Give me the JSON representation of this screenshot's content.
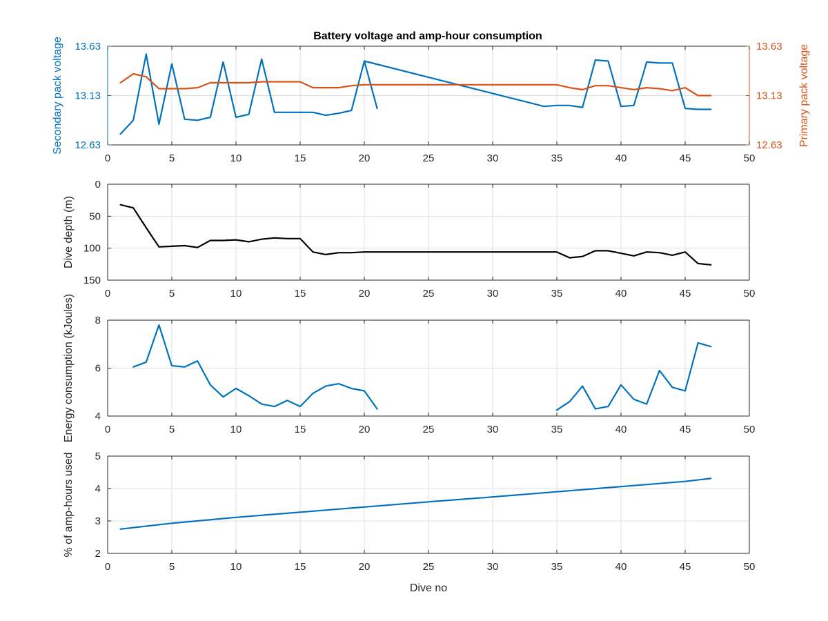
{
  "figure": {
    "title": "Battery voltage and amp-hour consumption"
  },
  "chart_data": [
    {
      "type": "line",
      "title": "Battery voltage and amp-hour consumption",
      "xlabel": "",
      "xlim": [
        0,
        50
      ],
      "xticks": [
        0,
        5,
        10,
        15,
        20,
        25,
        30,
        35,
        40,
        45,
        50
      ],
      "ylabel": "Secondary pack voltage",
      "ylim": [
        12.63,
        13.63
      ],
      "yticks": [
        12.63,
        13.13,
        13.63
      ],
      "ylabel_right": "Primary pack voltage",
      "ylim_right": [
        12.63,
        13.63
      ],
      "yticks_right": [
        12.63,
        13.13,
        13.63
      ],
      "grid": true,
      "colors": {
        "left_axis": "#0072BD",
        "right_axis": "#D95319"
      },
      "series": [
        {
          "axis": "left",
          "color": "#0072BD",
          "x": [
            1,
            2,
            3,
            4,
            5,
            6,
            7,
            8,
            9,
            10,
            11,
            12,
            13,
            14,
            15,
            16,
            17,
            18,
            19,
            20,
            21
          ],
          "y": [
            12.74,
            12.88,
            13.55,
            12.84,
            13.45,
            12.89,
            12.88,
            12.91,
            13.47,
            12.91,
            12.94,
            13.5,
            12.96,
            12.96,
            12.96,
            12.96,
            12.93,
            12.95,
            12.98,
            13.48,
            13.0
          ]
        },
        {
          "axis": "left",
          "color": "#0072BD",
          "x": [
            20,
            34,
            35,
            36,
            37,
            38,
            39,
            40,
            41,
            42,
            43,
            44,
            45,
            46,
            47
          ],
          "y": [
            13.48,
            13.02,
            13.03,
            13.03,
            13.01,
            13.49,
            13.48,
            13.02,
            13.03,
            13.47,
            13.46,
            13.46,
            13.0,
            12.99,
            12.99
          ]
        },
        {
          "axis": "right",
          "color": "#D95319",
          "x": [
            1,
            2,
            3,
            4,
            5,
            6,
            7,
            8,
            9,
            10,
            11,
            12,
            13,
            14,
            15,
            16,
            17,
            18,
            19,
            20,
            21,
            22,
            25,
            30,
            34,
            35,
            36,
            37,
            38,
            39,
            40,
            41,
            42,
            43,
            44,
            45,
            46,
            47
          ],
          "y": [
            13.26,
            13.35,
            13.32,
            13.2,
            13.2,
            13.2,
            13.21,
            13.26,
            13.26,
            13.26,
            13.26,
            13.27,
            13.27,
            13.27,
            13.27,
            13.21,
            13.21,
            13.21,
            13.23,
            13.24,
            13.24,
            13.24,
            13.24,
            13.24,
            13.24,
            13.24,
            13.21,
            13.19,
            13.23,
            13.23,
            13.21,
            13.19,
            13.21,
            13.2,
            13.18,
            13.21,
            13.13,
            13.13
          ]
        }
      ]
    },
    {
      "type": "line",
      "xlabel": "",
      "xlim": [
        0,
        50
      ],
      "xticks": [
        0,
        5,
        10,
        15,
        20,
        25,
        30,
        35,
        40,
        45,
        50
      ],
      "ylabel": "Dive depth (m)",
      "ylim": [
        0,
        150
      ],
      "yticks": [
        0,
        50,
        100,
        150
      ],
      "y_reversed": true,
      "grid": true,
      "series": [
        {
          "color": "#000000",
          "x": [
            1,
            2,
            3,
            4,
            5,
            6,
            7,
            8,
            9,
            10,
            11,
            12,
            13,
            14,
            15,
            16,
            17,
            18,
            19,
            20,
            25,
            30,
            35,
            36,
            37,
            38,
            39,
            40,
            41,
            42,
            43,
            44,
            45,
            46,
            47
          ],
          "y": [
            32,
            37,
            68,
            98,
            97,
            96,
            99,
            88,
            88,
            87,
            90,
            86,
            84,
            85,
            85,
            106,
            110,
            107,
            107,
            106,
            106,
            106,
            106,
            115,
            113,
            104,
            104,
            108,
            112,
            106,
            107,
            111,
            106,
            124,
            126
          ]
        }
      ]
    },
    {
      "type": "line",
      "xlabel": "",
      "xlim": [
        0,
        50
      ],
      "xticks": [
        0,
        5,
        10,
        15,
        20,
        25,
        30,
        35,
        40,
        45,
        50
      ],
      "ylabel": "Energy consumption (kJoules)",
      "ylim": [
        4,
        8
      ],
      "yticks": [
        4,
        6,
        8
      ],
      "grid": true,
      "series": [
        {
          "color": "#0072BD",
          "x": [
            2,
            3,
            4,
            5,
            6,
            7,
            8,
            9,
            10,
            11,
            12,
            13,
            14,
            15,
            16,
            17,
            18,
            19,
            20,
            21
          ],
          "y": [
            6.05,
            6.25,
            7.8,
            6.1,
            6.05,
            6.3,
            5.3,
            4.8,
            5.15,
            4.85,
            4.5,
            4.4,
            4.65,
            4.4,
            4.95,
            5.25,
            5.35,
            5.15,
            5.05,
            4.3
          ]
        },
        {
          "color": "#0072BD",
          "x": [
            35,
            36,
            37,
            38,
            39,
            40,
            41,
            42,
            43,
            44,
            45,
            46,
            47
          ],
          "y": [
            4.25,
            4.6,
            5.25,
            4.3,
            4.4,
            5.3,
            4.7,
            4.5,
            5.9,
            5.2,
            5.05,
            7.05,
            6.9
          ]
        }
      ]
    },
    {
      "type": "line",
      "xlabel": "Dive no",
      "xlim": [
        0,
        50
      ],
      "xticks": [
        0,
        5,
        10,
        15,
        20,
        25,
        30,
        35,
        40,
        45,
        50
      ],
      "ylabel": "% of amp-hours used",
      "ylim": [
        2,
        5
      ],
      "yticks": [
        2,
        3,
        4,
        5
      ],
      "grid": true,
      "series": [
        {
          "color": "#0072BD",
          "x": [
            1,
            5,
            10,
            15,
            20,
            25,
            30,
            35,
            40,
            45,
            47
          ],
          "y": [
            2.75,
            2.93,
            3.11,
            3.27,
            3.43,
            3.59,
            3.74,
            3.9,
            4.06,
            4.22,
            4.31
          ]
        }
      ]
    }
  ]
}
